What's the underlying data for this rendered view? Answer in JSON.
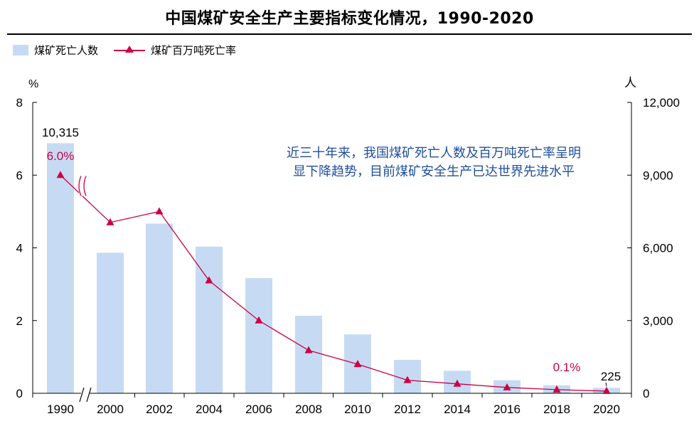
{
  "title": "中国煤矿安全生产主要指标变化情况，1990-2020",
  "legend": {
    "bar_label": "煤矿死亡人数",
    "line_label": "煤矿百万吨死亡率"
  },
  "annotation": "近三十年来，我国煤矿死亡人数及百万吨死亡率呈明显下降趋势，目前煤矿安全生产已达世界先进水平",
  "colors": {
    "bar": "#c6dbf3",
    "line": "#cc0044",
    "annotation": "#1f4e9c"
  },
  "chart_data": {
    "type": "bar",
    "categories": [
      "1990",
      "2000",
      "2002",
      "2004",
      "2006",
      "2008",
      "2010",
      "2012",
      "2014",
      "2016",
      "2018",
      "2020"
    ],
    "series": [
      {
        "name": "煤矿死亡人数",
        "type": "bar",
        "axis": "right",
        "values": [
          10315,
          5800,
          7000,
          6050,
          4750,
          3200,
          2430,
          1380,
          930,
          540,
          330,
          225
        ]
      },
      {
        "name": "煤矿百万吨死亡率",
        "type": "line",
        "axis": "left",
        "values": [
          6.0,
          4.7,
          5.0,
          3.1,
          2.0,
          1.18,
          0.8,
          0.36,
          0.26,
          0.16,
          0.1,
          0.06
        ]
      }
    ],
    "left_axis": {
      "unit_label": "%",
      "ylim": [
        0,
        8
      ],
      "ticks": [
        "0",
        "2",
        "4",
        "6",
        "8"
      ]
    },
    "right_axis": {
      "unit_label": "人",
      "ylim": [
        0,
        12000
      ],
      "ticks": [
        "0",
        "3,000",
        "6,000",
        "9,000",
        "12,000"
      ]
    },
    "axis_break_after": "1990",
    "data_labels": {
      "bar_first": "10,315",
      "bar_last": "225",
      "line_first": "6.0%",
      "line_last": "0.1%"
    },
    "grid": false,
    "legend_position": "top-left"
  }
}
